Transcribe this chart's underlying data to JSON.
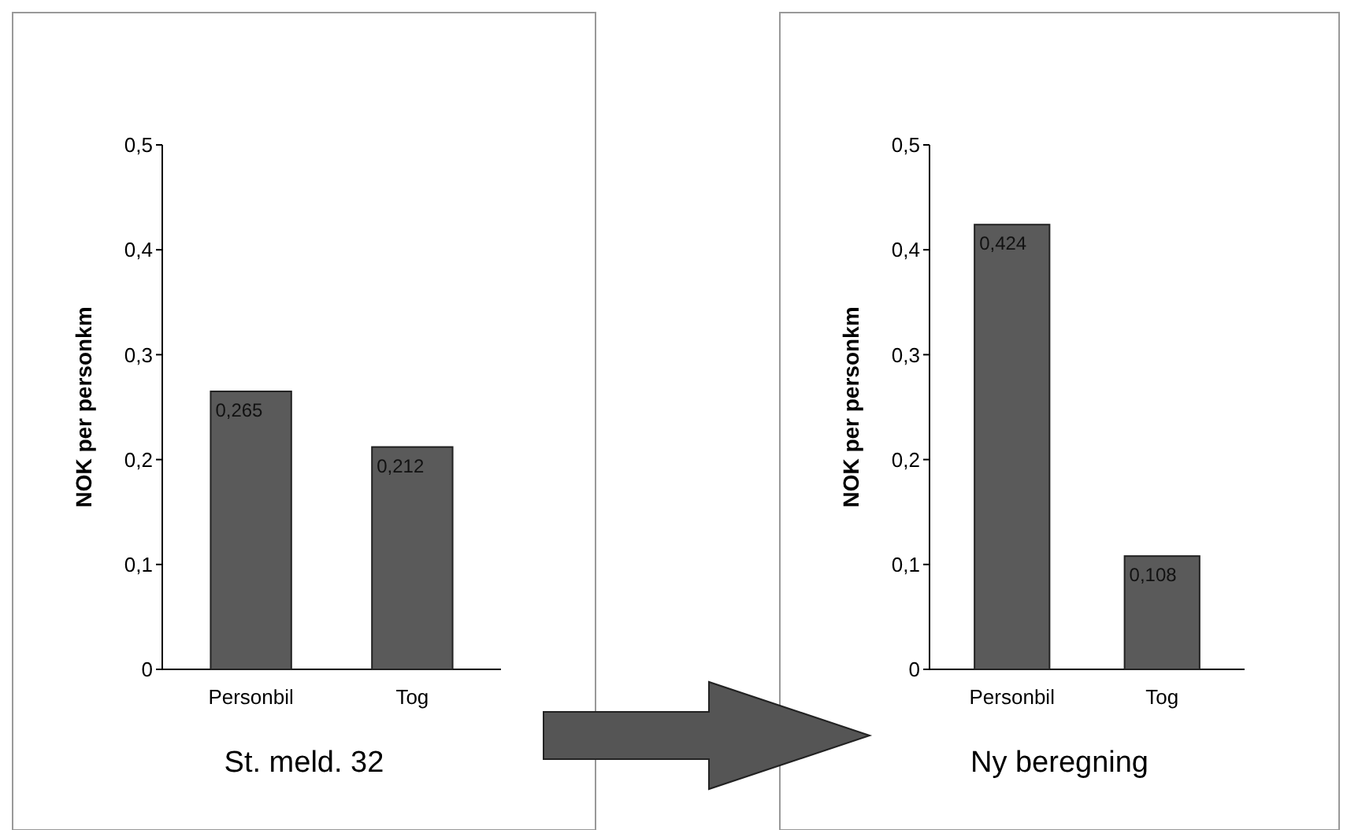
{
  "chart_data": [
    {
      "type": "bar",
      "title": "St. meld. 32",
      "ylabel": "NOK per personkm",
      "categories": [
        "Personbil",
        "Tog"
      ],
      "values": [
        0.265,
        0.212
      ],
      "value_labels": [
        "0,265",
        "0,212"
      ],
      "color": "#5a5a5a",
      "ylim": [
        0,
        0.5
      ],
      "yticks": [
        0,
        {
          "value": 0.1,
          "label": "0,1"
        },
        {
          "value": 0.2,
          "label": "0,2"
        },
        {
          "value": 0.3,
          "label": "0,3"
        },
        {
          "value": 0.4,
          "label": "0,4"
        },
        {
          "value": 0.5,
          "label": "0,5"
        }
      ],
      "grid": false
    },
    {
      "type": "bar",
      "title": "Ny beregning",
      "ylabel": "NOK per personkm",
      "categories": [
        "Personbil",
        "Tog"
      ],
      "values": [
        0.424,
        0.108
      ],
      "value_labels": [
        "0,424",
        "0,108"
      ],
      "color": "#5a5a5a",
      "ylim": [
        0,
        0.5
      ],
      "yticks": [
        0,
        {
          "value": 0.1,
          "label": "0,1"
        },
        {
          "value": 0.2,
          "label": "0,2"
        },
        {
          "value": 0.3,
          "label": "0,3"
        },
        {
          "value": 0.4,
          "label": "0,4"
        },
        {
          "value": 0.5,
          "label": "0,5"
        }
      ],
      "grid": false
    }
  ]
}
